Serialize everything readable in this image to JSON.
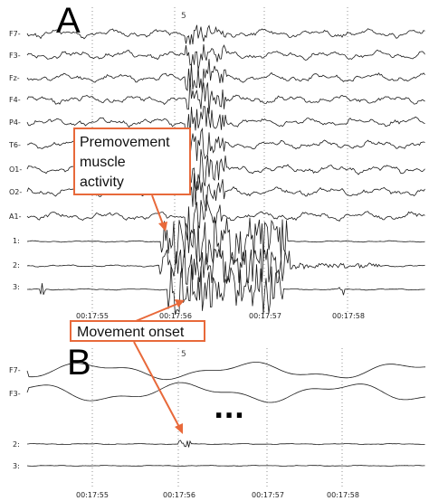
{
  "panel_a": {
    "letter": "A",
    "scale_mark": "5",
    "channels": [
      "F7-",
      "F3-",
      "Fz-",
      "F4-",
      "P4-",
      "T6-",
      "O1-",
      "O2-",
      "A1-",
      "1:",
      "2:",
      "3:"
    ],
    "time_labels": [
      "00:17:55",
      "00:17:56",
      "00:17:57",
      "00:17:58"
    ]
  },
  "panel_b": {
    "letter": "B",
    "scale_mark": "5",
    "channels": [
      "F7-",
      "F3-",
      "2:",
      "3:"
    ],
    "ellipsis": "...",
    "time_labels": [
      "00:17:55",
      "00:17:56",
      "00:17:57",
      "00:17:58"
    ]
  },
  "callouts": {
    "premovement_line1": "Premovement",
    "premovement_line2": "muscle",
    "premovement_line3": "activity",
    "movement_onset": "Movement onset"
  },
  "colors": {
    "callout_border": "#e8693a",
    "trace": "#1a1a1a"
  }
}
